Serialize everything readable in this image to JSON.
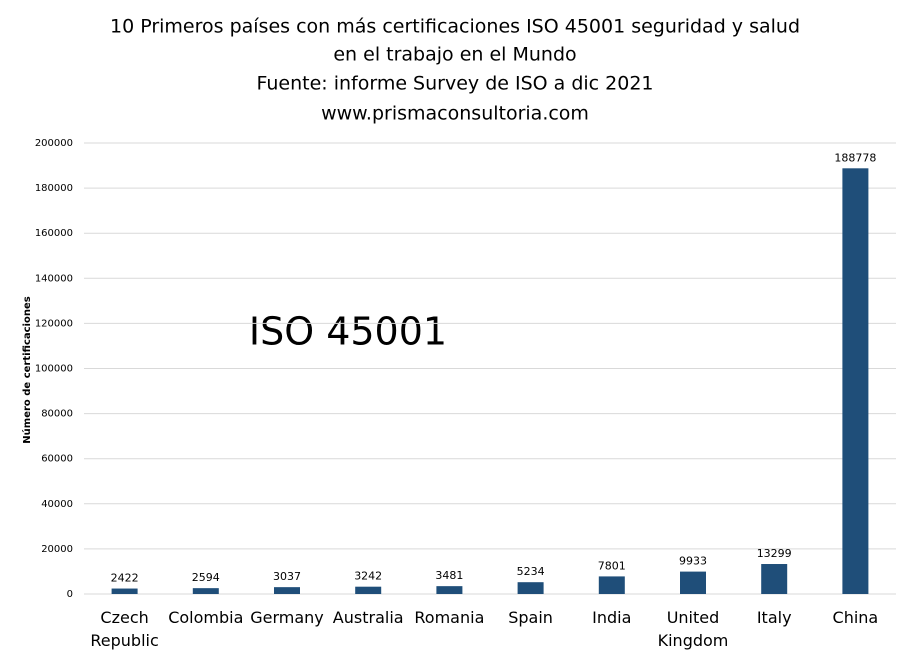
{
  "chart_data": {
    "type": "bar",
    "title": [
      "10 Primeros países con más certificaciones ISO 45001 seguridad y salud",
      "en el  trabajo en el Mundo",
      "Fuente: informe Survey de ISO a dic 2021",
      "www.prismaconsultoria.com"
    ],
    "annotation": "ISO 45001",
    "y_label": "Número de certificaciones",
    "categories": [
      "Czech Republic",
      "Colombia",
      "Germany",
      "Australia",
      "Romania",
      "Spain",
      "India",
      "United Kingdom",
      "Italy",
      "China"
    ],
    "values": [
      2422,
      2594,
      3037,
      3242,
      3481,
      5234,
      7801,
      9933,
      13299,
      188778
    ],
    "color": "#1f4e79",
    "ylim": [
      0,
      200000
    ],
    "yticks": [
      0,
      20000,
      40000,
      60000,
      80000,
      100000,
      120000,
      140000,
      160000,
      180000,
      200000
    ],
    "grid": true
  }
}
